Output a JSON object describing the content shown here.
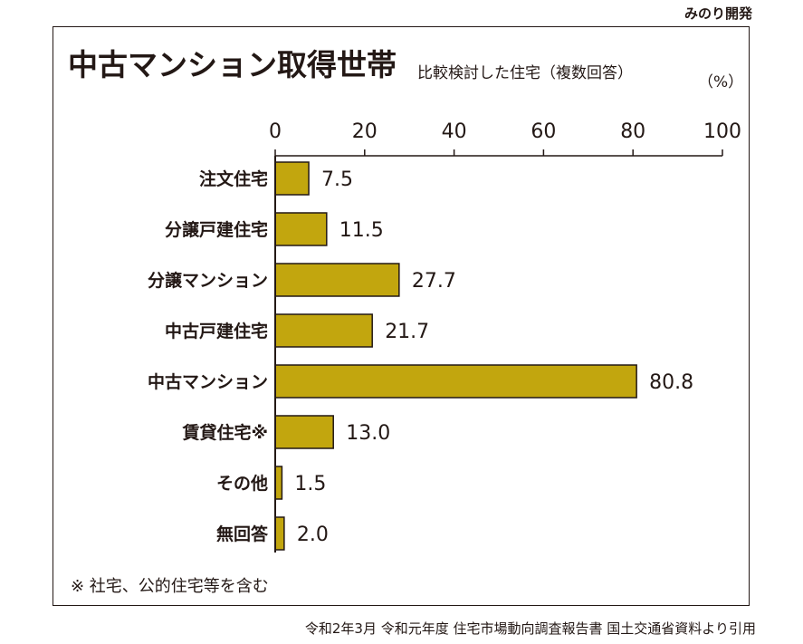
{
  "credit": "みのり開発",
  "title": "中古マンション取得世帯",
  "subtitle": "比較検討した住宅（複数回答）",
  "unit": "（%）",
  "note": "※ 社宅、公的住宅等を含む",
  "source": "令和2年3月 令和元年度 住宅市場動向調査報告書 国土交通省資料より引用",
  "colors": {
    "bar": "#c2a60e",
    "bar_outline": "#231815",
    "text": "#231815"
  },
  "chart_data": {
    "type": "bar",
    "orientation": "horizontal",
    "title": "中古マンション取得世帯",
    "subtitle": "比較検討した住宅（複数回答）",
    "unit": "（%）",
    "categories": [
      "注文住宅",
      "分譲戸建住宅",
      "分譲マンション",
      "中古戸建住宅",
      "中古マンション",
      "賃貸住宅※",
      "その他",
      "無回答"
    ],
    "values": [
      7.5,
      11.5,
      27.7,
      21.7,
      80.8,
      13.0,
      1.5,
      2.0
    ],
    "value_labels": [
      "7.5",
      "11.5",
      "27.7",
      "21.7",
      "80.8",
      "13.0",
      "1.5",
      "2.0"
    ],
    "xlim": [
      0,
      100
    ],
    "xticks": [
      "0",
      "20",
      "40",
      "60",
      "80",
      "100"
    ],
    "grid": false,
    "legend": "none"
  }
}
